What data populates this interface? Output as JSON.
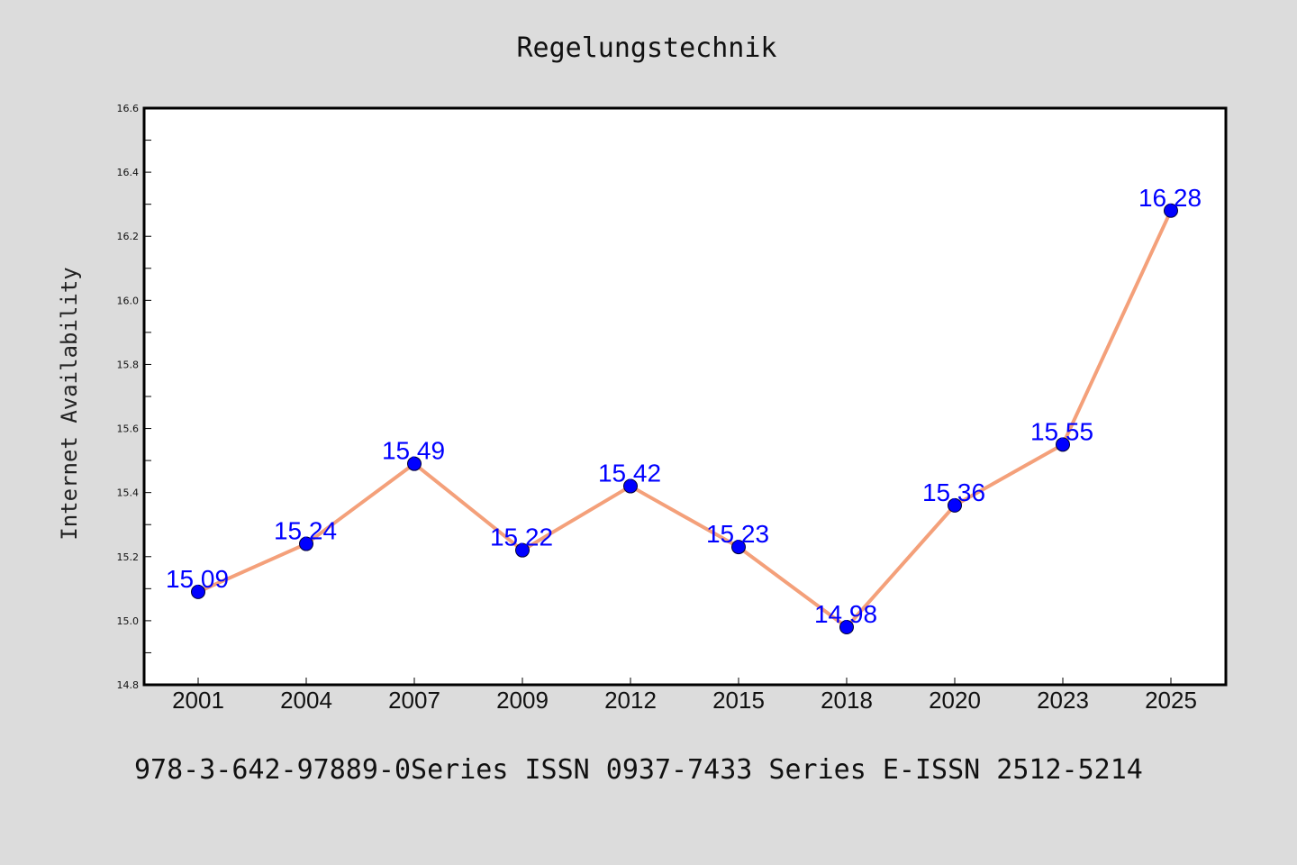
{
  "chart_data": {
    "type": "line",
    "title": "Regelungstechnik",
    "ylabel": "Internet Availability",
    "xlabel": "",
    "categories": [
      "2001",
      "2004",
      "2007",
      "2009",
      "2012",
      "2015",
      "2018",
      "2020",
      "2023",
      "2025"
    ],
    "series": [
      {
        "values": [
          15.09,
          15.24,
          15.49,
          15.22,
          15.42,
          15.23,
          14.98,
          15.36,
          15.55,
          16.28
        ],
        "labels": [
          "15.09",
          "15.24",
          "15.49",
          "15.22",
          "15.42",
          "15.23",
          "14.98",
          "15.36",
          "15.55",
          "16.28"
        ],
        "line_color": "#f4a07a",
        "marker_color": "#0000ff"
      }
    ],
    "ylim": [
      14.8,
      16.6
    ],
    "yticks": [
      "14.8",
      "15.0",
      "15.2",
      "15.4",
      "15.6",
      "15.8",
      "16.0",
      "16.2",
      "16.4",
      "16.6"
    ],
    "grid": false,
    "legend": "none"
  },
  "footer": "978-3-642-97889-0Series ISSN 0937-7433 Series E-ISSN 2512-5214",
  "colors": {
    "background": "#dcdcdc",
    "plot_background": "#ffffff",
    "line": "#f4a07a",
    "marker": "#0000ff",
    "label": "#0000ff"
  }
}
